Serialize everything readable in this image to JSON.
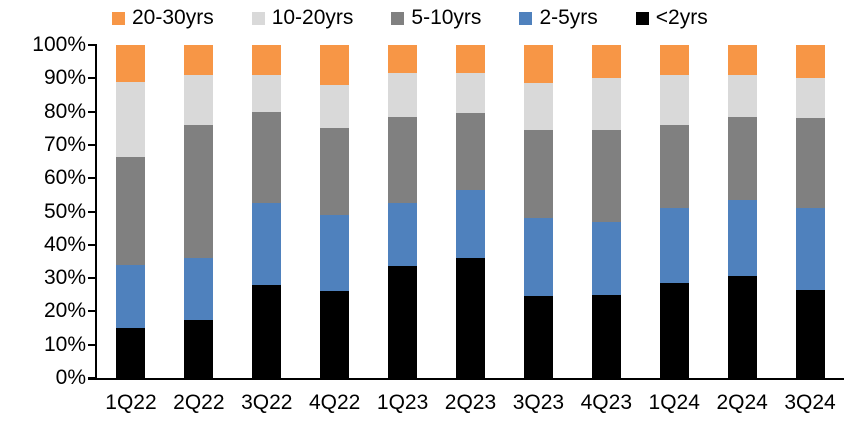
{
  "chart_data": {
    "type": "bar",
    "subtype": "stacked-100-percent",
    "title": "",
    "xlabel": "",
    "ylabel": "",
    "grid": false,
    "legend_position": "top",
    "categories": [
      "1Q22",
      "2Q22",
      "3Q22",
      "4Q22",
      "1Q23",
      "2Q23",
      "3Q23",
      "4Q23",
      "1Q24",
      "2Q24",
      "3Q24"
    ],
    "series": [
      {
        "name": "<2yrs",
        "color": "#000000",
        "values": [
          15.0,
          17.5,
          28.0,
          26.0,
          33.5,
          36.0,
          24.5,
          25.0,
          28.5,
          30.5,
          26.5
        ]
      },
      {
        "name": "2-5yrs",
        "color": "#4F81BD",
        "values": [
          19.0,
          18.5,
          24.5,
          23.0,
          19.0,
          20.5,
          23.5,
          22.0,
          22.5,
          23.0,
          24.5
        ]
      },
      {
        "name": "5-10yrs",
        "color": "#808080",
        "values": [
          32.5,
          40.0,
          27.5,
          26.0,
          26.0,
          23.0,
          26.5,
          27.5,
          25.0,
          25.0,
          27.0
        ]
      },
      {
        "name": "10-20yrs",
        "color": "#D9D9D9",
        "values": [
          22.5,
          15.0,
          11.0,
          13.0,
          13.0,
          12.0,
          14.0,
          15.5,
          15.0,
          12.5,
          12.0
        ]
      },
      {
        "name": "20-30yrs",
        "color": "#F79646",
        "values": [
          11.0,
          9.0,
          9.0,
          12.0,
          8.5,
          8.5,
          11.5,
          10.0,
          9.0,
          9.0,
          10.0
        ]
      }
    ],
    "legend_order": [
      "20-30yrs",
      "10-20yrs",
      "5-10yrs",
      "2-5yrs",
      "<2yrs"
    ],
    "y_axis": {
      "min": 0,
      "max": 100,
      "step": 10,
      "suffix": "%",
      "tick_labels": [
        "100%",
        "90%",
        "80%",
        "70%",
        "60%",
        "50%",
        "40%",
        "30%",
        "20%",
        "10%",
        "0%"
      ]
    }
  }
}
